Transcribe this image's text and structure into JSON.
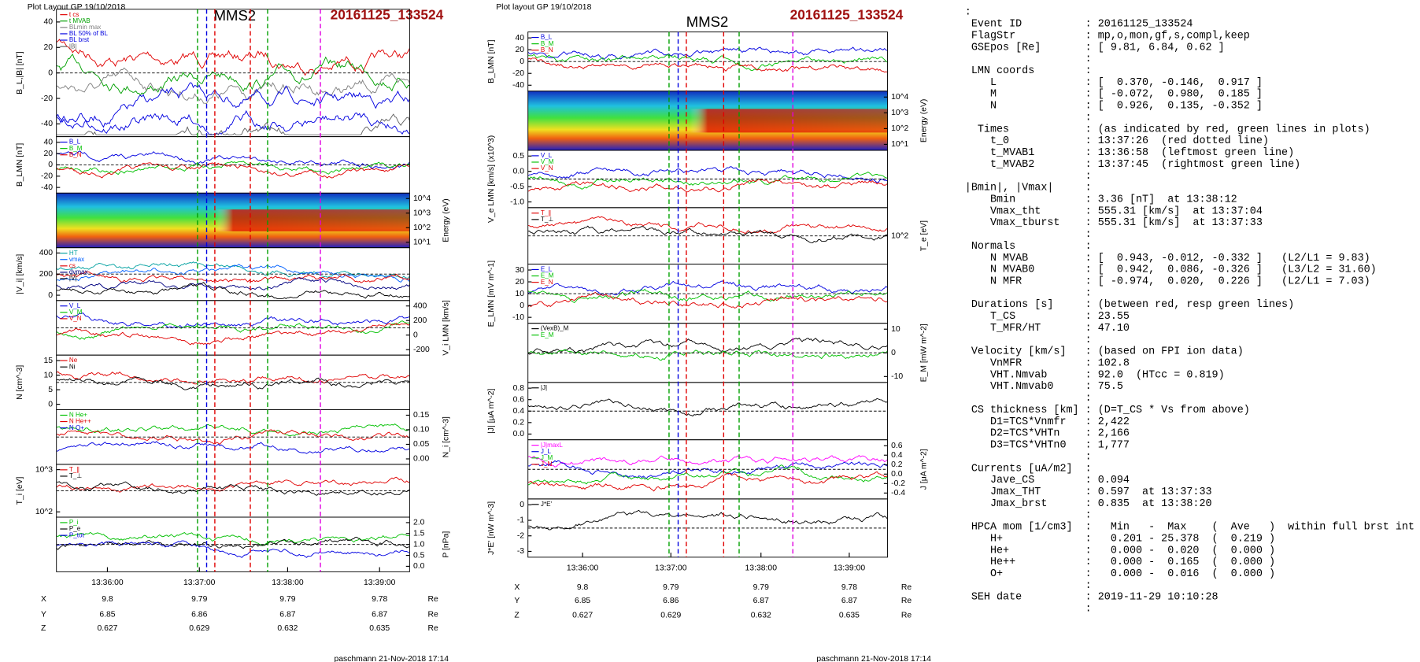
{
  "left_plot": {
    "header": "Plot Layout GP 19/10/2018",
    "spacecraft": "MMS2",
    "event": "20161125_133524",
    "panels": [
      {
        "ylabel": "B_L,|B| [nT]",
        "side": "left",
        "yticks": [
          "40",
          "20",
          "0",
          "-20",
          "-40"
        ],
        "legend": [
          {
            "name": "t cs",
            "color": "#e00000"
          },
          {
            "name": "t MVAB",
            "color": "#00a000"
          },
          {
            "name": "BLmin max",
            "color": "#808080"
          },
          {
            "name": "BL 50% of BL",
            "color": "#0000e0"
          },
          {
            "name": "BL brst",
            "color": "#0000e0"
          },
          {
            "name": "|B|",
            "color": "#606060"
          }
        ]
      },
      {
        "ylabel": "B_LMN [nT]",
        "side": "left",
        "yticks": [
          "40",
          "20",
          "0",
          "-20",
          "-40"
        ],
        "legend": [
          {
            "name": "B_L",
            "color": "#0000e0"
          },
          {
            "name": "B_M",
            "color": "#00c000"
          },
          {
            "name": "B_N",
            "color": "#e00000"
          }
        ]
      },
      {
        "type": "spectrogram",
        "ylabel": "Energy (eV)",
        "side": "right",
        "yticks": [
          "10^4",
          "10^3",
          "10^2",
          "10^1"
        ],
        "legend": []
      },
      {
        "ylabel": "|V_i| [km/s]",
        "side": "left",
        "yticks": [
          "400",
          "200",
          "0"
        ],
        "legend": [
          {
            "name": "HT",
            "color": "#00a0a0"
          },
          {
            "name": "vmax",
            "color": "#0060ff"
          },
          {
            "name": "cs",
            "color": "#e00000"
          },
          {
            "name": "dvmax",
            "color": "#000080"
          },
          {
            "name": "|V|",
            "color": "#000000"
          }
        ]
      },
      {
        "ylabel": "V_i LMN [km/s]",
        "side": "right",
        "yticks": [
          "400",
          "200",
          "0",
          "-200"
        ],
        "legend": [
          {
            "name": "V_L",
            "color": "#0000e0"
          },
          {
            "name": "V_M",
            "color": "#00c000"
          },
          {
            "name": "V_N",
            "color": "#e00000"
          }
        ]
      },
      {
        "ylabel": "N [cm^-3]",
        "side": "left",
        "yticks": [
          "15",
          "10",
          "5",
          "0"
        ],
        "legend": [
          {
            "name": "Ne",
            "color": "#e00000"
          },
          {
            "name": "Ni",
            "color": "#000000"
          }
        ]
      },
      {
        "ylabel": "N_i [cm^-3]",
        "side": "right",
        "yticks": [
          "0.15",
          "0.10",
          "0.05",
          "0.00"
        ],
        "legend": [
          {
            "name": "N He+",
            "color": "#00c000"
          },
          {
            "name": "N He++",
            "color": "#e00000"
          },
          {
            "name": "N O+",
            "color": "#0000e0"
          }
        ]
      },
      {
        "ylabel": "T_i [eV]",
        "side": "left",
        "yticks": [
          "10^3",
          "10^2"
        ],
        "legend": [
          {
            "name": "T_∥",
            "color": "#e00000"
          },
          {
            "name": "T_⊥",
            "color": "#000000"
          }
        ]
      },
      {
        "ylabel": "P [nPa]",
        "side": "right",
        "yticks": [
          "2.0",
          "1.5",
          "1.0",
          "0.5",
          "0.0"
        ],
        "legend": [
          {
            "name": "P_i",
            "color": "#00c000"
          },
          {
            "name": "P_e",
            "color": "#000000"
          },
          {
            "name": "P_tot",
            "color": "#0000e0"
          }
        ]
      }
    ],
    "xticks": [
      "13:36:00",
      "13:37:00",
      "13:38:00",
      "13:39:00"
    ],
    "positions": [
      {
        "label": "X",
        "values": [
          "9.8",
          "9.79",
          "9.79",
          "9.78"
        ],
        "unit": "Re"
      },
      {
        "label": "Y",
        "values": [
          "6.85",
          "6.86",
          "6.87",
          "6.87"
        ],
        "unit": "Re"
      },
      {
        "label": "Z",
        "values": [
          "0.627",
          "0.629",
          "0.632",
          "0.635"
        ],
        "unit": "Re"
      }
    ],
    "footer": "paschmann 21-Nov-2018 17:14"
  },
  "right_plot": {
    "header": "Plot layout GP 19/10/2018",
    "spacecraft": "MMS2",
    "event": "20161125_133524",
    "panels": [
      {
        "ylabel": "B_LMN [nT]",
        "side": "left",
        "yticks": [
          "40",
          "20",
          "0",
          "-20",
          "-40"
        ],
        "legend": [
          {
            "name": "B_L",
            "color": "#0000e0"
          },
          {
            "name": "B_M",
            "color": "#00c000"
          },
          {
            "name": "B_N",
            "color": "#e00000"
          }
        ]
      },
      {
        "type": "spectrogram",
        "ylabel": "Energy (eV)",
        "side": "right",
        "yticks": [
          "10^4",
          "10^3",
          "10^2",
          "10^1"
        ],
        "legend": []
      },
      {
        "ylabel": "V_e LMN [km/s] (x10^3)",
        "side": "left",
        "yticks": [
          "0.5",
          "0.0",
          "-0.5",
          "-1.0"
        ],
        "legend": [
          {
            "name": "V_L",
            "color": "#0000e0"
          },
          {
            "name": "V_M",
            "color": "#00c000"
          },
          {
            "name": "V_N",
            "color": "#e00000"
          }
        ]
      },
      {
        "ylabel": "T_e [eV]",
        "side": "right",
        "yticks": [
          "10^2"
        ],
        "legend": [
          {
            "name": "T_∥",
            "color": "#e00000"
          },
          {
            "name": "T_⊥",
            "color": "#000000"
          }
        ]
      },
      {
        "ylabel": "E_LMN [mV m^-1]",
        "side": "left",
        "yticks": [
          "30",
          "20",
          "10",
          "0",
          "-10"
        ],
        "legend": [
          {
            "name": "E_L",
            "color": "#0000e0"
          },
          {
            "name": "E_M",
            "color": "#00c000"
          },
          {
            "name": "E_N",
            "color": "#e00000"
          }
        ]
      },
      {
        "ylabel": "E_M [mW m^-2]",
        "side": "right",
        "yticks": [
          "10",
          "0",
          "-10"
        ],
        "legend": [
          {
            "name": "(VexB)_M",
            "color": "#000000"
          },
          {
            "name": "E_M",
            "color": "#00c000"
          }
        ]
      },
      {
        "ylabel": "|J| [μA m^-2]",
        "side": "left",
        "yticks": [
          "0.8",
          "0.6",
          "0.4",
          "0.2",
          "0.0"
        ],
        "legend": [
          {
            "name": "|J|",
            "color": "#000000"
          }
        ]
      },
      {
        "ylabel": "J [μA m^-2]",
        "side": "right",
        "yticks": [
          "0.6",
          "0.4",
          "0.2",
          "0.0",
          "-0.2",
          "-0.4"
        ],
        "legend": [
          {
            "name": "|J|maxL",
            "color": "#ff00ff"
          },
          {
            "name": "J_L",
            "color": "#0000e0"
          },
          {
            "name": "J_M",
            "color": "#00c000"
          },
          {
            "name": "J_N",
            "color": "#e00000"
          }
        ]
      },
      {
        "ylabel": "J*E' [nW m^-3]",
        "side": "left",
        "yticks": [
          "0",
          "-1",
          "-2",
          "-3"
        ],
        "legend": [
          {
            "name": "J*E'",
            "color": "#000000"
          }
        ]
      }
    ],
    "xticks": [
      "13:36:00",
      "13:37:00",
      "13:38:00",
      "13:39:00"
    ],
    "positions": [
      {
        "label": "X",
        "values": [
          "9.8",
          "9.79",
          "9.79",
          "9.78"
        ],
        "unit": "Re"
      },
      {
        "label": "Y",
        "values": [
          "6.85",
          "6.86",
          "6.87",
          "6.87"
        ],
        "unit": "Re"
      },
      {
        "label": "Z",
        "values": [
          "0.627",
          "0.629",
          "0.632",
          "0.635"
        ],
        "unit": "Re"
      }
    ],
    "footer": "paschmann 21-Nov-2018 17:14"
  },
  "summary": {
    "lines": [
      ":",
      " Event ID          : 20161125_133524",
      " FlagStr           : mp,o,mon,gf,s,compl,keep",
      " GSEpos [Re]       : [ 9.81, 6.84, 0.62 ]",
      "                   :",
      " LMN coords        :",
      "    L              : [  0.370, -0.146,  0.917 ]",
      "    M              : [ -0.072,  0.980,  0.185 ]",
      "    N              : [  0.926,  0.135, -0.352 ]",
      "                   :",
      "  Times            : (as indicated by red, green lines in plots)",
      "    t_0            : 13:37:26  (red dotted line)",
      "    t_MVAB1        : 13:36:58  (leftmost green line)",
      "    t_MVAB2        : 13:37:45  (rightmost green line)",
      "                   :",
      "|Bmin|, |Vmax|     :",
      "    Bmin           : 3.36 [nT]  at 13:38:12",
      "    Vmax_tht       : 555.31 [km/s]  at 13:37:04",
      "    Vmax_tburst    : 555.31 [km/s]  at 13:37:33",
      "                   :",
      " Normals           :",
      "    N MVAB         : [  0.943, -0.012, -0.332 ]   (L2/L1 = 9.83)",
      "    N MVAB0        : [  0.942,  0.086, -0.326 ]   (L3/L2 = 31.60)",
      "    N MFR          : [ -0.974,  0.020,  0.226 ]   (L2/L1 = 7.03)",
      "                   :",
      " Durations [s]     : (between red, resp green lines)",
      "    T_CS           : 23.55",
      "    T_MFR/HT       : 47.10",
      "                   :",
      " Velocity [km/s]   : (based on FPI ion data)",
      "    VnMFR          : 102.8",
      "    VHT.Nmvab      : 92.0  (HTcc = 0.819)",
      "    VHT.Nmvab0     : 75.5",
      "                   :",
      " CS thickness [km] : (D=T_CS * Vs from above)",
      "    D1=TCS*Vnmfr   : 2,422",
      "    D2=TCS*VHTn    : 2,166",
      "    D3=TCS*VHTn0   : 1,777",
      "                   :",
      " Currents [uA/m2]  :",
      "    Jave_CS        : 0.094",
      "    Jmax_THT       : 0.597  at 13:37:33",
      "    Jmax_brst      : 0.835  at 13:38:20",
      "                   :",
      " HPCA mom [1/cm3]  :   Min   -  Max    (  Ave   )  within full brst int",
      "    H+             :   0.201 - 25.378  (  0.219 )",
      "    He+            :   0.000 -  0.020  (  0.000 )",
      "    He++           :   0.000 -  0.165  (  0.000 )",
      "    O+             :   0.000 -  0.016  (  0.000 )",
      "                   :",
      " SEH date          : 2019-11-29 10:10:28",
      "                   :"
    ]
  }
}
